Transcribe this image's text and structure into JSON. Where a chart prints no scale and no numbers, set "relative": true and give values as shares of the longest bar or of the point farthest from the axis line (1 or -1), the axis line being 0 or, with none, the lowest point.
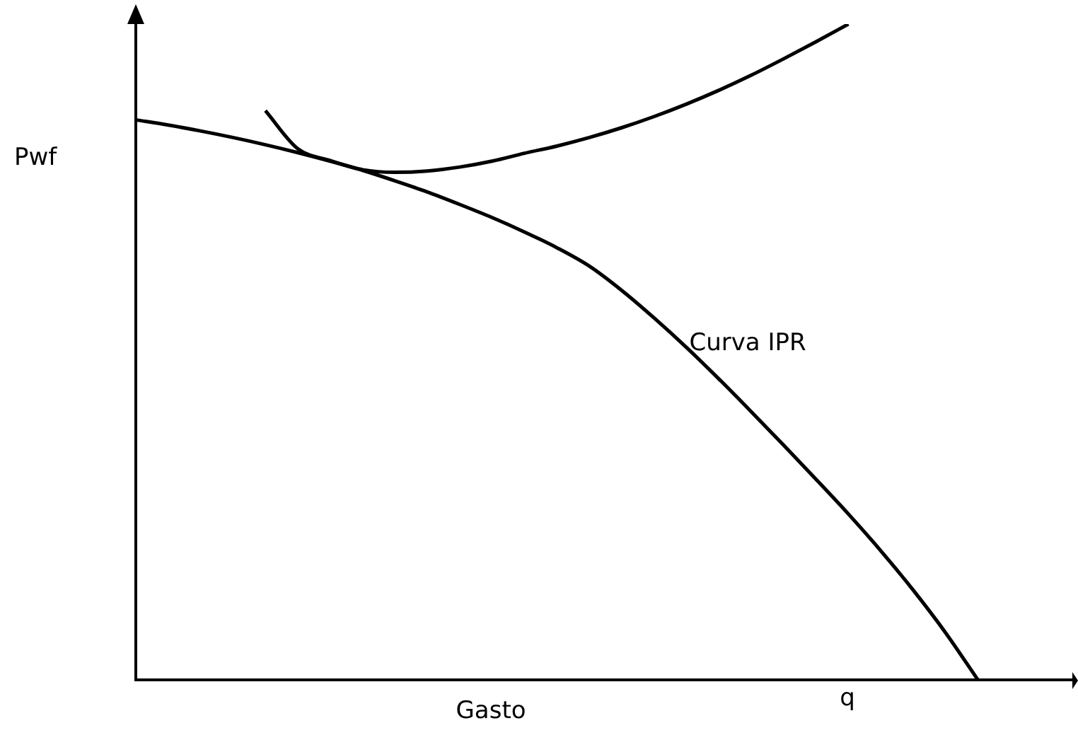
{
  "chart_data": {
    "type": "line",
    "relative": true,
    "ylabel": "Pwf",
    "xlabel": "Gasto",
    "annotations": [
      "q"
    ],
    "legend": false,
    "grid": false,
    "marker": "none",
    "line_style": "solid",
    "categories": [
      null,
      null,
      null,
      null,
      null,
      null,
      null,
      null,
      null,
      null,
      null,
      null,
      null,
      null,
      null,
      null,
      null,
      null,
      null,
      null,
      null,
      null,
      null,
      null,
      null,
      null,
      null,
      null,
      null,
      null
    ],
    "series": [
      {
        "name": "Curva IPR",
        "color": "#000000",
        "values": [
          0.854,
          0.846,
          0.837,
          0.827,
          0.816,
          0.804,
          0.791,
          0.777,
          0.761,
          0.744,
          0.725,
          0.705,
          0.683,
          0.659,
          0.631,
          0.594,
          0.552,
          0.507,
          0.459,
          0.409,
          0.358,
          0.306,
          0.253,
          0.197,
          0.137,
          0.072,
          0,
          null,
          null,
          null
        ]
      },
      {
        "color": "#000000",
        "values": [
          null,
          null,
          null,
          null,
          0.868,
          0.81,
          0.792,
          0.778,
          0.774,
          0.776,
          0.782,
          0.791,
          0.803,
          0.814,
          0.827,
          0.842,
          0.859,
          0.878,
          0.899,
          0.922,
          0.947,
          0.973,
          1,
          null,
          null,
          null,
          null,
          null,
          null,
          null
        ]
      }
    ]
  }
}
